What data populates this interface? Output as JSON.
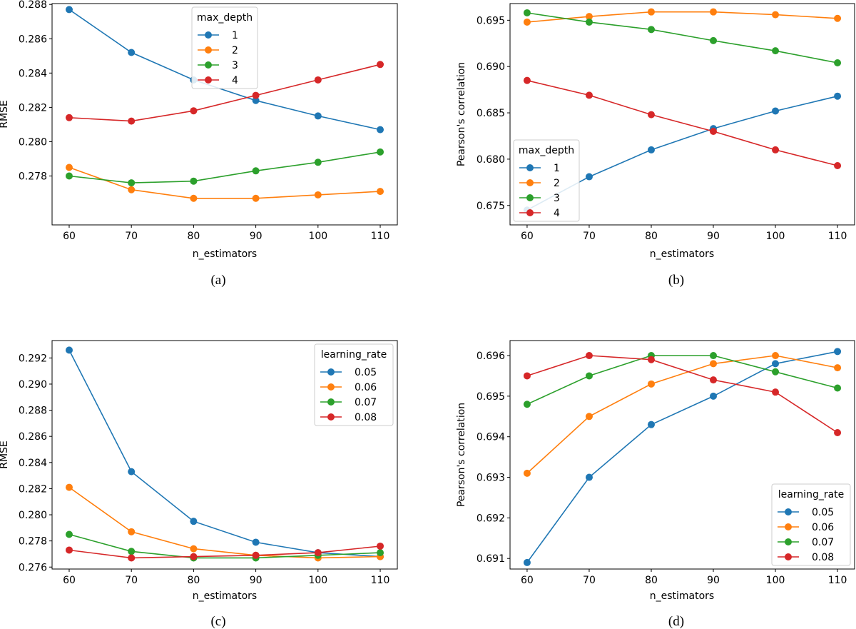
{
  "chart_data": [
    {
      "id": "a",
      "type": "line",
      "caption": "(a)",
      "xlabel": "n_estimators",
      "ylabel": "RMSE",
      "x": [
        60,
        70,
        80,
        90,
        100,
        110
      ],
      "xticks": [
        "60",
        "70",
        "80",
        "90",
        "100",
        "110"
      ],
      "xlim": [
        57.25,
        112.75
      ],
      "ylim": [
        0.27515,
        0.28805
      ],
      "yticks": [
        0.278,
        0.28,
        0.282,
        0.284,
        0.286,
        0.288
      ],
      "ytick_labels": [
        "0.278",
        "0.280",
        "0.282",
        "0.284",
        "0.286",
        "0.288"
      ],
      "legend": {
        "title": "max_depth",
        "position": "upper center"
      },
      "series": [
        {
          "name": "1",
          "color": "#1f77b4",
          "values": [
            0.2877,
            0.2852,
            0.2836,
            0.2824,
            0.2815,
            0.2807
          ]
        },
        {
          "name": "2",
          "color": "#ff7f0e",
          "values": [
            0.2785,
            0.2772,
            0.2767,
            0.2767,
            0.2769,
            0.2771
          ]
        },
        {
          "name": "3",
          "color": "#2ca02c",
          "values": [
            0.278,
            0.2776,
            0.2777,
            0.2783,
            0.2788,
            0.2794
          ]
        },
        {
          "name": "4",
          "color": "#d62728",
          "values": [
            0.2814,
            0.2812,
            0.2818,
            0.2827,
            0.2836,
            0.2845
          ]
        }
      ]
    },
    {
      "id": "b",
      "type": "line",
      "caption": "(b)",
      "xlabel": "n_estimators",
      "ylabel": "Pearson's correlation",
      "x": [
        60,
        70,
        80,
        90,
        100,
        110
      ],
      "xticks": [
        "60",
        "70",
        "80",
        "90",
        "100",
        "110"
      ],
      "xlim": [
        57.25,
        112.75
      ],
      "ylim": [
        0.6729,
        0.6968
      ],
      "yticks": [
        0.675,
        0.68,
        0.685,
        0.69,
        0.695
      ],
      "ytick_labels": [
        "0.675",
        "0.680",
        "0.685",
        "0.690",
        "0.695"
      ],
      "legend": {
        "title": "max_depth",
        "position": "lower left"
      },
      "series": [
        {
          "name": "1",
          "color": "#1f77b4",
          "values": [
            0.6745,
            0.6781,
            0.681,
            0.6833,
            0.6852,
            0.6868
          ]
        },
        {
          "name": "2",
          "color": "#ff7f0e",
          "values": [
            0.6948,
            0.6954,
            0.6959,
            0.6959,
            0.6956,
            0.6952
          ]
        },
        {
          "name": "3",
          "color": "#2ca02c",
          "values": [
            0.6958,
            0.6948,
            0.694,
            0.6928,
            0.6917,
            0.6904
          ]
        },
        {
          "name": "4",
          "color": "#d62728",
          "values": [
            0.6885,
            0.6869,
            0.6848,
            0.683,
            0.681,
            0.6793
          ]
        }
      ]
    },
    {
      "id": "c",
      "type": "line",
      "caption": "(c)",
      "xlabel": "n_estimators",
      "ylabel": "RMSE",
      "x": [
        60,
        70,
        80,
        90,
        100,
        110
      ],
      "xticks": [
        "60",
        "70",
        "80",
        "90",
        "100",
        "110"
      ],
      "xlim": [
        57.25,
        112.75
      ],
      "ylim": [
        0.27585,
        0.29333
      ],
      "yticks": [
        0.276,
        0.278,
        0.28,
        0.282,
        0.284,
        0.286,
        0.288,
        0.29,
        0.292
      ],
      "ytick_labels": [
        "0.276",
        "0.278",
        "0.280",
        "0.282",
        "0.284",
        "0.286",
        "0.288",
        "0.290",
        "0.292"
      ],
      "legend": {
        "title": "learning_rate",
        "position": "upper right"
      },
      "series": [
        {
          "name": "0.05",
          "color": "#1f77b4",
          "values": [
            0.2926,
            0.2833,
            0.2795,
            0.2779,
            0.2771,
            0.2768
          ]
        },
        {
          "name": "0.06",
          "color": "#ff7f0e",
          "values": [
            0.2821,
            0.2787,
            0.2774,
            0.2769,
            0.2767,
            0.2768
          ]
        },
        {
          "name": "0.07",
          "color": "#2ca02c",
          "values": [
            0.2785,
            0.2772,
            0.2767,
            0.2767,
            0.2769,
            0.2771
          ]
        },
        {
          "name": "0.08",
          "color": "#d62728",
          "values": [
            0.2773,
            0.2767,
            0.2768,
            0.2769,
            0.2771,
            0.2776
          ]
        }
      ]
    },
    {
      "id": "d",
      "type": "line",
      "caption": "(d)",
      "xlabel": "n_estimators",
      "ylabel": "Pearson's correlation",
      "x": [
        60,
        70,
        80,
        90,
        100,
        110
      ],
      "xticks": [
        "60",
        "70",
        "80",
        "90",
        "100",
        "110"
      ],
      "xlim": [
        57.25,
        112.75
      ],
      "ylim": [
        0.69074,
        0.69637
      ],
      "yticks": [
        0.691,
        0.692,
        0.693,
        0.694,
        0.695,
        0.696
      ],
      "ytick_labels": [
        "0.691",
        "0.692",
        "0.693",
        "0.694",
        "0.695",
        "0.696"
      ],
      "legend": {
        "title": "learning_rate",
        "position": "lower right"
      },
      "series": [
        {
          "name": "0.05",
          "color": "#1f77b4",
          "values": [
            0.6909,
            0.693,
            0.6943,
            0.695,
            0.6958,
            0.6961
          ]
        },
        {
          "name": "0.06",
          "color": "#ff7f0e",
          "values": [
            0.6931,
            0.6945,
            0.6953,
            0.6958,
            0.696,
            0.6957
          ]
        },
        {
          "name": "0.07",
          "color": "#2ca02c",
          "values": [
            0.6948,
            0.6955,
            0.696,
            0.696,
            0.6956,
            0.6952
          ]
        },
        {
          "name": "0.08",
          "color": "#d62728",
          "values": [
            0.6955,
            0.696,
            0.6959,
            0.6954,
            0.6951,
            0.6941
          ]
        }
      ]
    }
  ]
}
